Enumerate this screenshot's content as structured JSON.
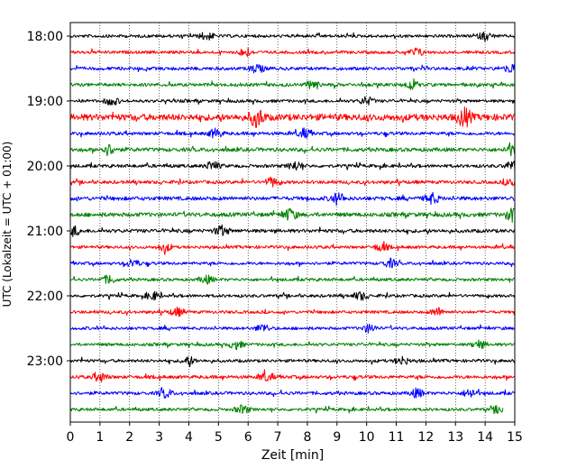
{
  "chart_data": {
    "type": "line",
    "title": "",
    "xlabel": "Zeit  [min]",
    "ylabel": "UTC (Lokalzeit = UTC + 01:00)",
    "xlim": [
      0,
      15
    ],
    "x_ticks": [
      "0",
      "1",
      "2",
      "3",
      "4",
      "5",
      "6",
      "7",
      "8",
      "9",
      "10",
      "11",
      "12",
      "13",
      "14",
      "15"
    ],
    "y_tick_labels": [
      "18:00",
      "19:00",
      "20:00",
      "21:00",
      "22:00",
      "23:00"
    ],
    "grid": "vertical dotted at each minute",
    "row_interval_minutes": 15,
    "trace_colors": [
      "#000000",
      "#ff0000",
      "#0000ff",
      "#008000"
    ],
    "rows": [
      {
        "start": "18:00",
        "color": "#000000",
        "events_min": [
          4.6,
          14.0
        ],
        "amp": 1.0
      },
      {
        "start": "18:15",
        "color": "#ff0000",
        "events_min": [
          5.9,
          11.7
        ],
        "amp": 1.0
      },
      {
        "start": "18:30",
        "color": "#0000ff",
        "events_min": [
          6.3,
          14.9
        ],
        "amp": 1.1
      },
      {
        "start": "18:45",
        "color": "#008000",
        "events_min": [
          8.2,
          11.5
        ],
        "amp": 1.1
      },
      {
        "start": "19:00",
        "color": "#000000",
        "events_min": [
          1.4,
          10.0
        ],
        "amp": 1.0
      },
      {
        "start": "19:15",
        "color": "#ff0000",
        "events_min": [
          6.3,
          13.3
        ],
        "amp": 2.2
      },
      {
        "start": "19:30",
        "color": "#0000ff",
        "events_min": [
          4.9,
          7.9
        ],
        "amp": 1.1
      },
      {
        "start": "19:45",
        "color": "#008000",
        "events_min": [
          1.3,
          14.9
        ],
        "amp": 1.3
      },
      {
        "start": "20:00",
        "color": "#000000",
        "events_min": [
          4.8,
          7.6,
          14.9
        ],
        "amp": 1.1
      },
      {
        "start": "20:15",
        "color": "#ff0000",
        "events_min": [
          6.8,
          14.9
        ],
        "amp": 1.1
      },
      {
        "start": "20:30",
        "color": "#0000ff",
        "events_min": [
          9.0,
          12.2
        ],
        "amp": 1.3
      },
      {
        "start": "20:45",
        "color": "#008000",
        "events_min": [
          7.4,
          14.9
        ],
        "amp": 1.4
      },
      {
        "start": "21:00",
        "color": "#000000",
        "events_min": [
          0.1,
          5.1
        ],
        "amp": 1.2
      },
      {
        "start": "21:15",
        "color": "#ff0000",
        "events_min": [
          3.2,
          10.5
        ],
        "amp": 1.0
      },
      {
        "start": "21:30",
        "color": "#0000ff",
        "events_min": [
          2.1,
          10.8
        ],
        "amp": 1.0
      },
      {
        "start": "21:45",
        "color": "#008000",
        "events_min": [
          1.3,
          4.6
        ],
        "amp": 1.0
      },
      {
        "start": "22:00",
        "color": "#000000",
        "events_min": [
          2.8,
          9.8
        ],
        "amp": 1.0
      },
      {
        "start": "22:15",
        "color": "#ff0000",
        "events_min": [
          3.6,
          12.4
        ],
        "amp": 1.0
      },
      {
        "start": "22:30",
        "color": "#0000ff",
        "events_min": [
          6.5,
          10.1
        ],
        "amp": 1.0
      },
      {
        "start": "22:45",
        "color": "#008000",
        "events_min": [
          5.6,
          13.8
        ],
        "amp": 1.0
      },
      {
        "start": "23:00",
        "color": "#000000",
        "events_min": [
          4.0,
          11.2
        ],
        "amp": 1.0
      },
      {
        "start": "23:15",
        "color": "#ff0000",
        "events_min": [
          1.0,
          6.6
        ],
        "amp": 1.1
      },
      {
        "start": "23:30",
        "color": "#0000ff",
        "events_min": [
          3.2,
          11.7,
          13.5
        ],
        "amp": 1.1
      },
      {
        "start": "23:45",
        "color": "#008000",
        "events_min": [
          5.8,
          14.5
        ],
        "amp": 1.0,
        "end_min": 14.6
      }
    ]
  }
}
